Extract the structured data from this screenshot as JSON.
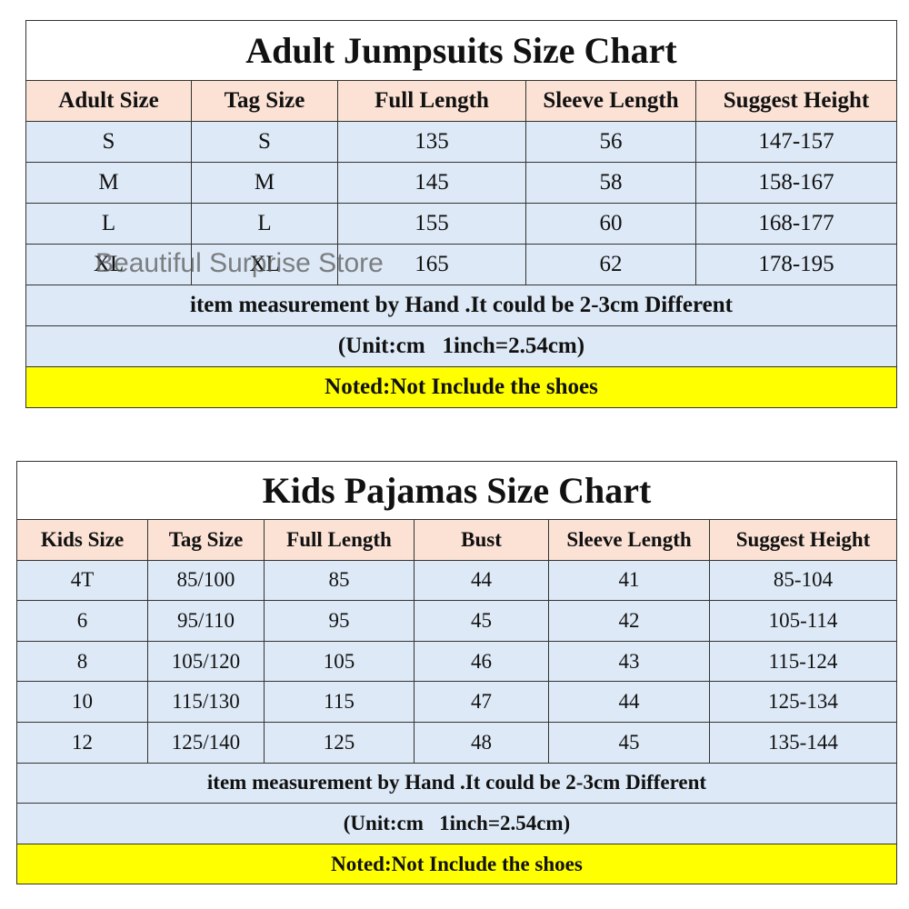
{
  "tables": [
    {
      "title": "Adult Jumpsuits Size Chart",
      "header": [
        "Adult Size",
        "Tag Size",
        "Full Length",
        "Sleeve Length",
        "Suggest Height"
      ],
      "rows": [
        [
          "S",
          "S",
          135,
          56,
          "147-157"
        ],
        [
          "M",
          "M",
          145,
          58,
          "158-167"
        ],
        [
          "L",
          "L",
          155,
          60,
          "168-177"
        ],
        [
          "XL",
          "XL",
          165,
          62,
          "178-195"
        ]
      ],
      "notes": [
        "item measurement by Hand .It could be 2-3cm Different",
        "(Unit:cm   1inch=2.54cm)",
        "Noted:Not Include the shoes"
      ]
    },
    {
      "title": "Kids Pajamas Size Chart",
      "header": [
        "Kids Size",
        "Tag Size",
        "Full Length",
        "Bust",
        "Sleeve Length",
        "Suggest Height"
      ],
      "rows": [
        [
          "4T",
          "85/100",
          85,
          44,
          41,
          "85-104"
        ],
        [
          6,
          "95/110",
          95,
          45,
          42,
          "105-114"
        ],
        [
          8,
          "105/120",
          105,
          46,
          43,
          "115-124"
        ],
        [
          10,
          "115/130",
          115,
          47,
          44,
          "125-134"
        ],
        [
          12,
          "125/140",
          125,
          48,
          45,
          "135-144"
        ]
      ],
      "notes": [
        "item measurement by Hand .It could be 2-3cm Different",
        "(Unit:cm   1inch=2.54cm)",
        "Noted:Not Include the shoes"
      ]
    }
  ],
  "watermark": "Beautiful Surprise Store"
}
